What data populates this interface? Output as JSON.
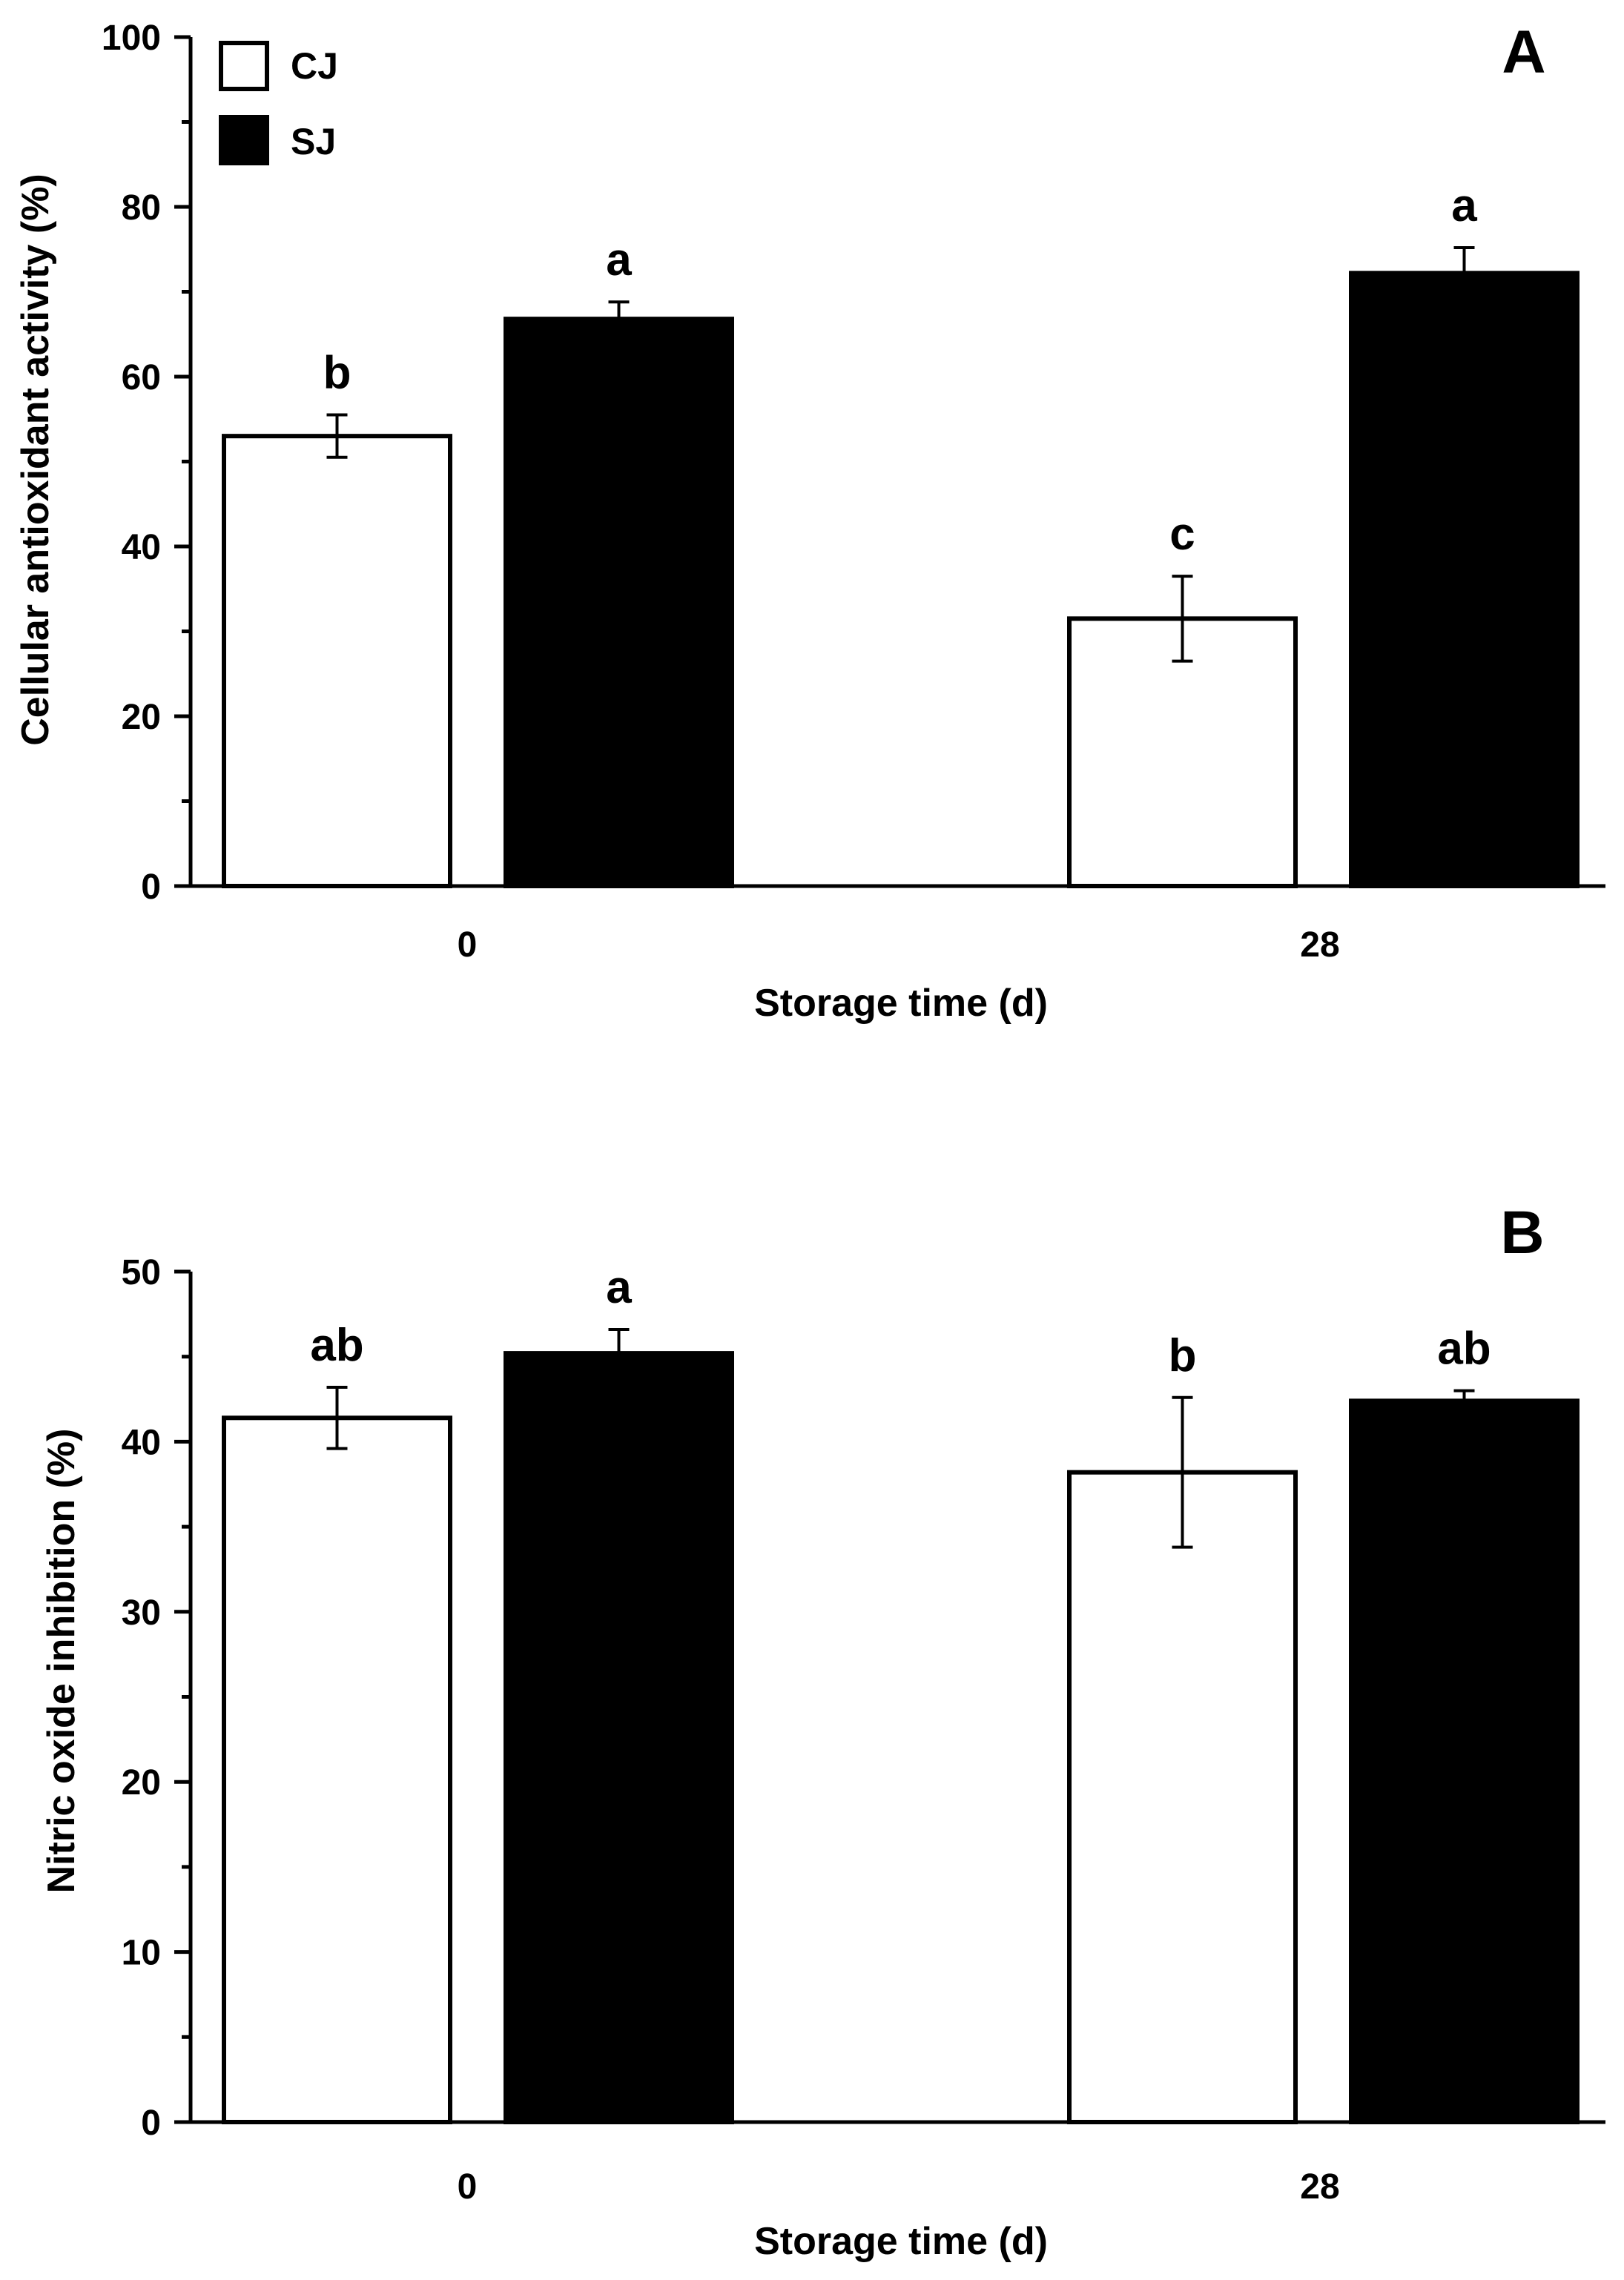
{
  "chart_data": [
    {
      "type": "bar",
      "panel_label": "A",
      "categories": [
        "0",
        "28"
      ],
      "series": [
        {
          "name": "CJ",
          "color": "#ffffff",
          "values": [
            53.0,
            31.5
          ],
          "errors": [
            2.5,
            5.0
          ],
          "letters": [
            "b",
            "c"
          ]
        },
        {
          "name": "SJ",
          "color": "#000000",
          "values": [
            66.8,
            72.2
          ],
          "errors": [
            2.0,
            3.0
          ],
          "letters": [
            "a",
            "a"
          ]
        }
      ],
      "xlabel": "Storage time (d)",
      "ylabel": "Cellular antioxidant activity (%)",
      "ylim": [
        0,
        100
      ],
      "yticks": [
        0,
        20,
        40,
        60,
        80,
        100
      ],
      "legend": {
        "position": "top-left",
        "entries": [
          "CJ",
          "SJ"
        ]
      }
    },
    {
      "type": "bar",
      "panel_label": "B",
      "categories": [
        "0",
        "28"
      ],
      "series": [
        {
          "name": "CJ",
          "color": "#ffffff",
          "values": [
            41.4,
            38.2
          ],
          "errors": [
            1.8,
            4.4
          ],
          "letters": [
            "ab",
            "b"
          ]
        },
        {
          "name": "SJ",
          "color": "#000000",
          "values": [
            45.2,
            42.4
          ],
          "errors": [
            1.4,
            0.6
          ],
          "letters": [
            "a",
            "ab"
          ]
        }
      ],
      "xlabel": "Storage time (d)",
      "ylabel": "Nitric oxide inhibition (%)",
      "ylim": [
        0,
        50
      ],
      "yticks": [
        0,
        10,
        20,
        30,
        40,
        50
      ]
    }
  ]
}
